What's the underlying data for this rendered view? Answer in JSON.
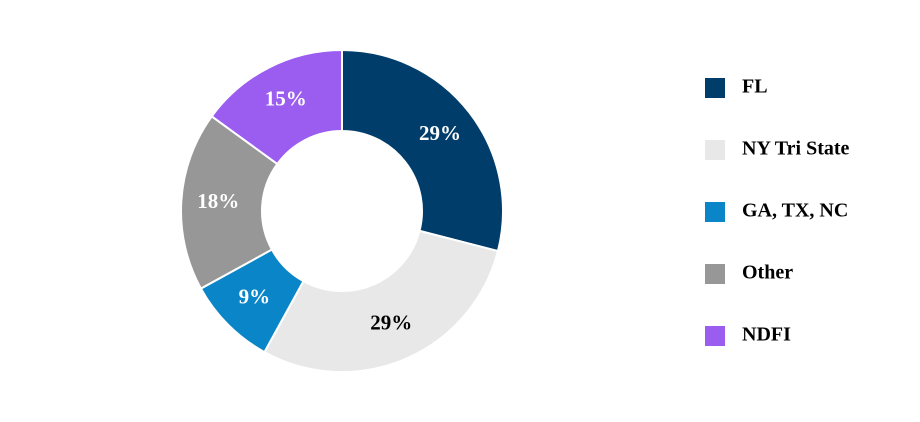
{
  "chart_data": {
    "type": "donut",
    "categories": [
      "FL",
      "NY Tri State",
      "GA, TX, NC",
      "Other",
      "NDFI"
    ],
    "values": [
      29,
      29,
      9,
      18,
      15
    ],
    "value_labels": [
      "29%",
      "29%",
      "9%",
      "18%",
      "15%"
    ],
    "colors": [
      "#003d6b",
      "#e8e8e8",
      "#0a86c8",
      "#979797",
      "#9b5cf0"
    ],
    "legend": "right"
  }
}
